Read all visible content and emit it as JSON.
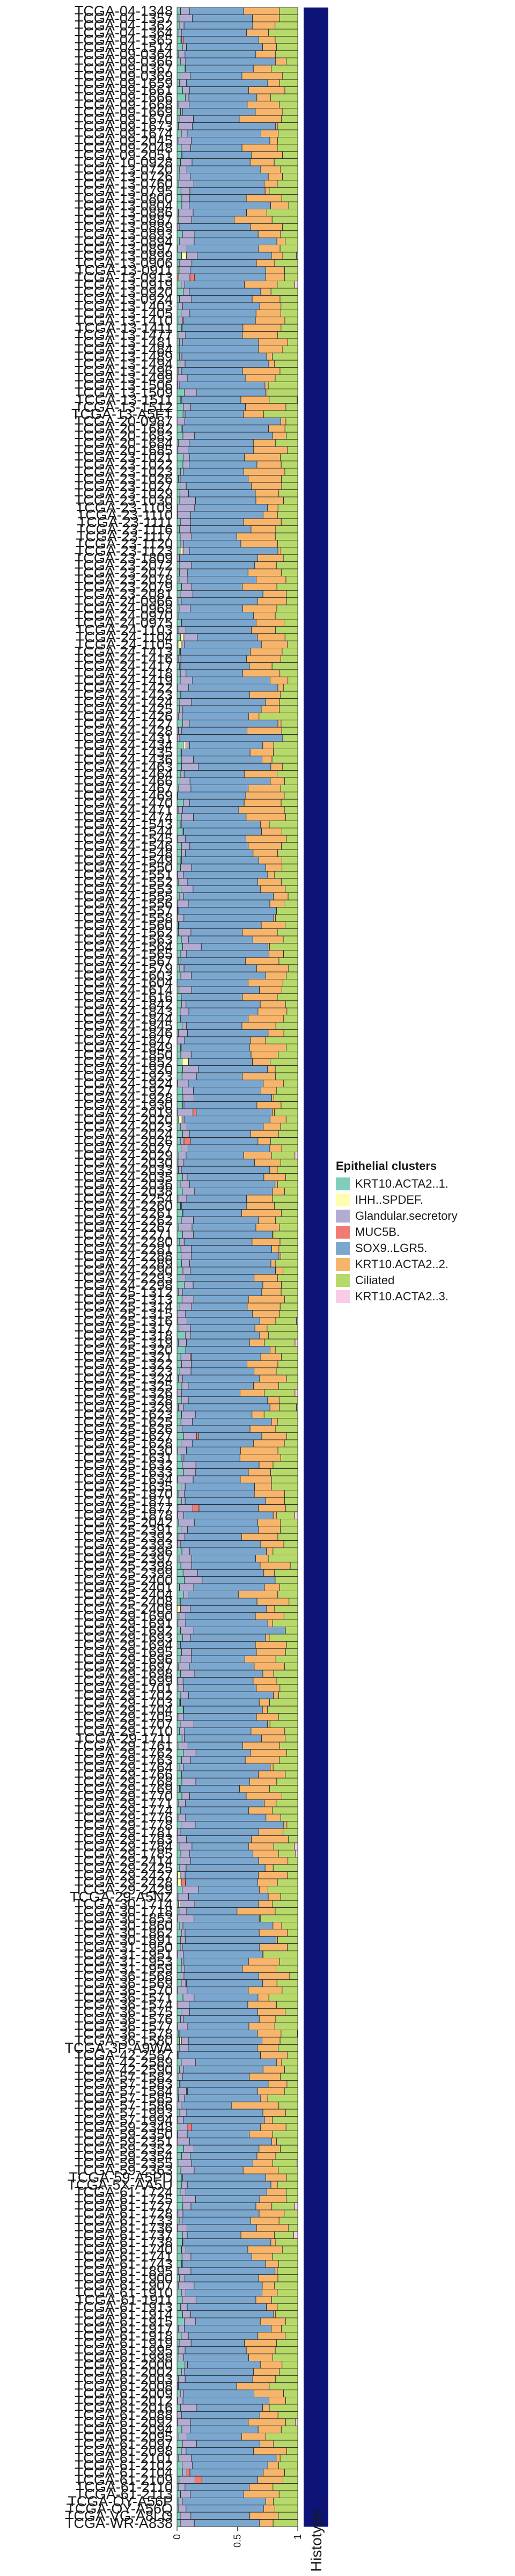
{
  "chart_data": {
    "type": "bar",
    "orientation": "horizontal",
    "stacked": true,
    "title": "",
    "xlabel": "",
    "ylabel": "",
    "xlim": [
      0,
      1
    ],
    "x_ticks": [
      "0",
      "0.5",
      "1"
    ],
    "grid": false,
    "legend": {
      "title": "Epithelial clusters",
      "position": "right",
      "entries": [
        {
          "name": "KRT10.ACTA2..1.",
          "color": "#7fcdbb"
        },
        {
          "name": "IHH..SPDEF.",
          "color": "#fffdb0"
        },
        {
          "name": "Glandular.secretory",
          "color": "#b2abd2"
        },
        {
          "name": "MUC5B.",
          "color": "#f07a74"
        },
        {
          "name": "SOX9..LGR5.",
          "color": "#7ba7cf"
        },
        {
          "name": "KRT10.ACTA2..2.",
          "color": "#f6b56b"
        },
        {
          "name": "Ciliated",
          "color": "#b6d96a"
        },
        {
          "name": "KRT10.ACTA2..3.",
          "color": "#f9cbe6"
        }
      ]
    },
    "histotype_label": "Histotype",
    "histotype_color": "#0e1377",
    "categories": [
      "TCGA-04-1348",
      "TCGA-04-1357",
      "TCGA-04-1362",
      "TCGA-04-1364",
      "TCGA-04-1365",
      "TCGA-04-1514",
      "TCGA-09-0364",
      "TCGA-09-0366",
      "TCGA-09-0367",
      "TCGA-09-0369",
      "TCGA-09-1659",
      "TCGA-09-1661",
      "TCGA-09-1666",
      "TCGA-09-1668",
      "TCGA-09-1669",
      "TCGA-09-1670",
      "TCGA-09-1673",
      "TCGA-09-1674",
      "TCGA-09-2045",
      "TCGA-09-2048",
      "TCGA-09-2051",
      "TCGA-10-0928",
      "TCGA-13-0720",
      "TCGA-13-0726",
      "TCGA-13-0760",
      "TCGA-13-0795",
      "TCGA-13-0800",
      "TCGA-13-0804",
      "TCGA-13-0886",
      "TCGA-13-0887",
      "TCGA-13-0889",
      "TCGA-13-0893",
      "TCGA-13-0894",
      "TCGA-13-0897",
      "TCGA-13-0899",
      "TCGA-13-0906",
      "TCGA-13-0911",
      "TCGA-13-0913",
      "TCGA-13-0919",
      "TCGA-13-0920",
      "TCGA-13-0924",
      "TCGA-13-1403",
      "TCGA-13-1405",
      "TCGA-13-1410",
      "TCGA-13-1411",
      "TCGA-13-1477",
      "TCGA-13-1481",
      "TCGA-13-1484",
      "TCGA-13-1489",
      "TCGA-13-1494",
      "TCGA-13-1496",
      "TCGA-13-1499",
      "TCGA-13-1506",
      "TCGA-13-1509",
      "TCGA-13-1511",
      "TCGA-13-1512",
      "TCGA-13-A5FT",
      "TCGA-20-0987",
      "TCGA-20-1682",
      "TCGA-20-1683",
      "TCGA-20-1684",
      "TCGA-20-1685",
      "TCGA-23-1021",
      "TCGA-23-1022",
      "TCGA-23-1023",
      "TCGA-23-1026",
      "TCGA-23-1027",
      "TCGA-23-1029",
      "TCGA-23-1030",
      "TCGA-23-1109",
      "TCGA-23-1110",
      "TCGA-23-1111",
      "TCGA-23-1116",
      "TCGA-23-1117",
      "TCGA-23-1120",
      "TCGA-23-1123",
      "TCGA-23-1809",
      "TCGA-23-2072",
      "TCGA-23-2077",
      "TCGA-23-2078",
      "TCGA-23-2079",
      "TCGA-23-2081",
      "TCGA-24-0966",
      "TCGA-24-0968",
      "TCGA-24-0970",
      "TCGA-24-0975",
      "TCGA-24-1103",
      "TCGA-24-1104",
      "TCGA-24-1105",
      "TCGA-24-1413",
      "TCGA-24-1416",
      "TCGA-24-1417",
      "TCGA-24-1418",
      "TCGA-24-1419",
      "TCGA-24-1422",
      "TCGA-24-1423",
      "TCGA-24-1424",
      "TCGA-24-1425",
      "TCGA-24-1426",
      "TCGA-24-1427",
      "TCGA-24-1428",
      "TCGA-24-1431",
      "TCGA-24-1434",
      "TCGA-24-1435",
      "TCGA-24-1436",
      "TCGA-24-1463",
      "TCGA-24-1464",
      "TCGA-24-1466",
      "TCGA-24-1467",
      "TCGA-24-1469",
      "TCGA-24-1470",
      "TCGA-24-1471",
      "TCGA-24-1474",
      "TCGA-24-1543",
      "TCGA-24-1544",
      "TCGA-24-1545",
      "TCGA-24-1546",
      "TCGA-24-1548",
      "TCGA-24-1549",
      "TCGA-24-1550",
      "TCGA-24-1551",
      "TCGA-24-1552",
      "TCGA-24-1553",
      "TCGA-24-1555",
      "TCGA-24-1556",
      "TCGA-24-1557",
      "TCGA-24-1558",
      "TCGA-24-1560",
      "TCGA-24-1562",
      "TCGA-24-1563",
      "TCGA-24-1564",
      "TCGA-24-1565",
      "TCGA-24-1567",
      "TCGA-24-1579",
      "TCGA-24-1603",
      "TCGA-24-1604",
      "TCGA-24-1614",
      "TCGA-24-1616",
      "TCGA-24-1842",
      "TCGA-24-1843",
      "TCGA-24-1844",
      "TCGA-24-1845",
      "TCGA-24-1846",
      "TCGA-24-1847",
      "TCGA-24-1849",
      "TCGA-24-1850",
      "TCGA-24-1852",
      "TCGA-24-1920",
      "TCGA-24-1923",
      "TCGA-24-1924",
      "TCGA-24-1927",
      "TCGA-24-1928",
      "TCGA-24-1930",
      "TCGA-24-2019",
      "TCGA-24-2020",
      "TCGA-24-2023",
      "TCGA-24-2024",
      "TCGA-24-2026",
      "TCGA-24-2027",
      "TCGA-24-2029",
      "TCGA-24-2030",
      "TCGA-24-2033",
      "TCGA-24-2035",
      "TCGA-24-2036",
      "TCGA-24-2038",
      "TCGA-24-2254",
      "TCGA-24-2260",
      "TCGA-24-2261",
      "TCGA-24-2262",
      "TCGA-24-2267",
      "TCGA-24-2271",
      "TCGA-24-2280",
      "TCGA-24-2281",
      "TCGA-24-2288",
      "TCGA-24-2289",
      "TCGA-24-2290",
      "TCGA-24-2293",
      "TCGA-24-2298",
      "TCGA-25-1312",
      "TCGA-25-1313",
      "TCGA-25-1314",
      "TCGA-25-1315",
      "TCGA-25-1316",
      "TCGA-25-1317",
      "TCGA-25-1318",
      "TCGA-25-1319",
      "TCGA-25-1320",
      "TCGA-25-1321",
      "TCGA-25-1322",
      "TCGA-25-1323",
      "TCGA-25-1324",
      "TCGA-25-1325",
      "TCGA-25-1326",
      "TCGA-25-1328",
      "TCGA-25-1329",
      "TCGA-25-1623",
      "TCGA-25-1625",
      "TCGA-25-1626",
      "TCGA-25-1627",
      "TCGA-25-1628",
      "TCGA-25-1630",
      "TCGA-25-1631",
      "TCGA-25-1632",
      "TCGA-25-1633",
      "TCGA-25-1634",
      "TCGA-25-1635",
      "TCGA-25-1870",
      "TCGA-25-1871",
      "TCGA-25-1877",
      "TCGA-25-1878",
      "TCGA-25-2042",
      "TCGA-25-2391",
      "TCGA-25-2392",
      "TCGA-25-2393",
      "TCGA-25-2396",
      "TCGA-25-2397",
      "TCGA-25-2398",
      "TCGA-25-2399",
      "TCGA-25-2400",
      "TCGA-25-2401",
      "TCGA-25-2404",
      "TCGA-25-2408",
      "TCGA-25-2409",
      "TCGA-29-1690",
      "TCGA-29-1691",
      "TCGA-29-1692",
      "TCGA-29-1693",
      "TCGA-29-1694",
      "TCGA-29-1695",
      "TCGA-29-1696",
      "TCGA-29-1697",
      "TCGA-29-1698",
      "TCGA-29-1699",
      "TCGA-29-1701",
      "TCGA-29-1702",
      "TCGA-29-1703",
      "TCGA-29-1704",
      "TCGA-29-1705",
      "TCGA-29-1707",
      "TCGA-29-1710",
      "TCGA-29-1711",
      "TCGA-29-1761",
      "TCGA-29-1762",
      "TCGA-29-1763",
      "TCGA-29-1764",
      "TCGA-29-1766",
      "TCGA-29-1768",
      "TCGA-29-1769",
      "TCGA-29-1770",
      "TCGA-29-1771",
      "TCGA-29-1774",
      "TCGA-29-1776",
      "TCGA-29-1778",
      "TCGA-29-1781",
      "TCGA-29-1783",
      "TCGA-29-1784",
      "TCGA-29-1785",
      "TCGA-29-2414",
      "TCGA-29-2425",
      "TCGA-29-2427",
      "TCGA-29-2428",
      "TCGA-29-2429",
      "TCGA-29-A5NZ",
      "TCGA-30-1714",
      "TCGA-30-1718",
      "TCGA-30-1853",
      "TCGA-30-1860",
      "TCGA-30-1862",
      "TCGA-30-1891",
      "TCGA-31-1950",
      "TCGA-31-1951",
      "TCGA-31-1953",
      "TCGA-31-1959",
      "TCGA-36-1568",
      "TCGA-36-1569",
      "TCGA-36-1570",
      "TCGA-36-1571",
      "TCGA-36-1574",
      "TCGA-36-1575",
      "TCGA-36-1576",
      "TCGA-36-1577",
      "TCGA-36-1578",
      "TCGA-36-1580",
      "TCGA-3P-A9WA",
      "TCGA-42-2587",
      "TCGA-42-2589",
      "TCGA-42-2590",
      "TCGA-57-1582",
      "TCGA-57-1583",
      "TCGA-57-1584",
      "TCGA-57-1585",
      "TCGA-57-1586",
      "TCGA-57-1993",
      "TCGA-57-1994",
      "TCGA-59-2348",
      "TCGA-59-2350",
      "TCGA-59-2351",
      "TCGA-59-2352",
      "TCGA-59-2354",
      "TCGA-59-2355",
      "TCGA-59-2363",
      "TCGA-59-A5PD",
      "TCGA-5X-AA5U",
      "TCGA-61-1724",
      "TCGA-61-1725",
      "TCGA-61-1727",
      "TCGA-61-1728",
      "TCGA-61-1733",
      "TCGA-61-1736",
      "TCGA-61-1737",
      "TCGA-61-1738",
      "TCGA-61-1740",
      "TCGA-61-1741",
      "TCGA-61-1743",
      "TCGA-61-1895",
      "TCGA-61-1900",
      "TCGA-61-1907",
      "TCGA-61-1910",
      "TCGA-61-1911",
      "TCGA-61-1913",
      "TCGA-61-1914",
      "TCGA-61-1915",
      "TCGA-61-1917",
      "TCGA-61-1918",
      "TCGA-61-1919",
      "TCGA-61-1995",
      "TCGA-61-1998",
      "TCGA-61-2000",
      "TCGA-61-2002",
      "TCGA-61-2003",
      "TCGA-61-2008",
      "TCGA-61-2009",
      "TCGA-61-2012",
      "TCGA-61-2016",
      "TCGA-61-2088",
      "TCGA-61-2092",
      "TCGA-61-2094",
      "TCGA-61-2095",
      "TCGA-61-2097",
      "TCGA-61-2098",
      "TCGA-61-2101",
      "TCGA-61-2102",
      "TCGA-61-2104",
      "TCGA-61-2109",
      "TCGA-61-2110",
      "TCGA-61-2113",
      "TCGA-OY-A56P",
      "TCGA-OY-A56Q",
      "TCGA-VG-A8LO",
      "TCGA-WR-A838"
    ],
    "row_value_spec": {
      "description": "Per-sample cluster proportions, left to right; each row sums to 1",
      "order": [
        "KRT10.ACTA2..1.",
        "IHH..SPDEF.",
        "Glandular.secretory",
        "MUC5B.",
        "SOX9..LGR5.",
        "KRT10.ACTA2..2.",
        "Ciliated",
        "KRT10.ACTA2..3."
      ]
    },
    "seed": 73
  }
}
